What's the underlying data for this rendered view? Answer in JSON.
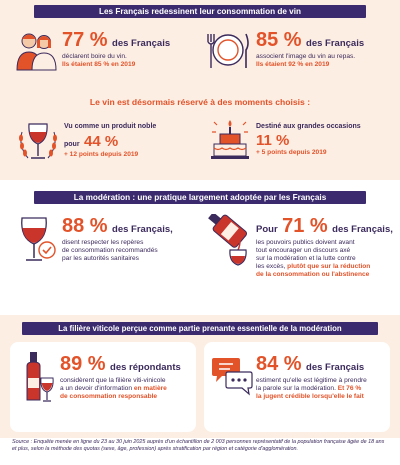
{
  "section1": {
    "banner": "Les Français redessinent leur consommation de vin",
    "stat_left": {
      "value": "77 %",
      "lead": "des Français",
      "lines": [
        "déclarent boire du vin."
      ],
      "accent": "Ils étaient 85 % en 2019"
    },
    "stat_right": {
      "value": "85 %",
      "lead": "des Français",
      "lines": [
        "associent l'image du vin au repas."
      ],
      "accent": "Ils étaient 92 % en 2019"
    },
    "subtitle": "Le vin est désormais réservé à des moments choisis :",
    "moment_left": {
      "label": "Vu comme un produit noble",
      "prefix": "pour",
      "value": "44 %",
      "accent": "+ 12 points depuis 2019"
    },
    "moment_right": {
      "label": "Destiné aux grandes occasions",
      "value": "11 %",
      "accent": "+ 5 points depuis 2019"
    }
  },
  "section2": {
    "banner": "La modération : une pratique largement adoptée par les Français",
    "stat_left": {
      "value": "88 %",
      "lead": "des Français,",
      "lines": [
        "disent respecter les repères",
        "de consommation recommandés",
        "par les autorités sanitaires"
      ]
    },
    "stat_right": {
      "prefix": "Pour",
      "value": "71 %",
      "lead": "des Français,",
      "lines": [
        "les pouvoirs publics doivent avant",
        "tout encourager un discours axé",
        "sur la modération et la lutte contre",
        "les excès,"
      ],
      "accent_inline": "plutôt que sur la réduction",
      "accent_lines": [
        "de la consommation ou l'abstinence"
      ]
    }
  },
  "section3": {
    "banner": "La filière viticole perçue comme partie prenante essentielle de la modération",
    "stat_left": {
      "value": "89 %",
      "lead": "des répondants",
      "lines": [
        "considèrent que la filière viti-vinicole",
        "a un devoir d'information"
      ],
      "accent_inline": "en matière",
      "accent_lines": [
        "de consommation responsable"
      ]
    },
    "stat_right": {
      "value": "84 %",
      "lead": "des Français",
      "lines": [
        "estiment qu'elle est légitime à prendre",
        "la parole sur la modération."
      ],
      "accent_inline": "Et 76 %",
      "accent_lines": [
        "la jugent crédible lorsqu'elle le fait"
      ]
    }
  },
  "source": {
    "text": "Source : Enquête menée en ligne du 23 au 30 juin 2025 auprès d'un échantillon de 2 003 personnes représentatif de la population française âgée de 18 ans et plus, selon la méthode des quotas (sexe, âge, profession) après stratification par région et catégorie d'agglomération."
  },
  "colors": {
    "accent": "#e2532a",
    "navy": "#3b2a6e",
    "peach": "#fdeee3",
    "wine": "#c9342b"
  },
  "icons": [
    "couple-icon",
    "plate-cutlery-icon",
    "wine-glass-laurel-icon",
    "cake-icon",
    "wine-glass-check-icon",
    "bottle-pour-icon",
    "bottle-glass-icon",
    "speech-bubbles-icon"
  ]
}
